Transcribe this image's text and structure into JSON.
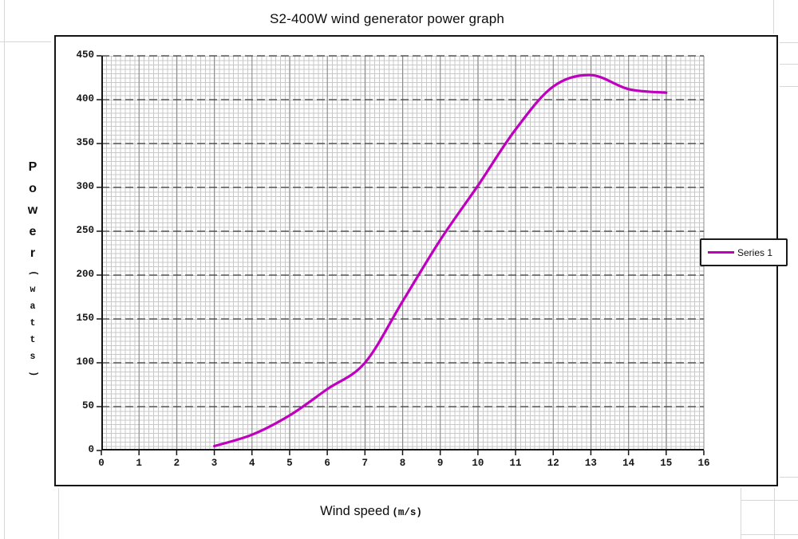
{
  "chart": {
    "xlabel_main": "Wind speed",
    "xlabel_unit": "(m/s)",
    "ylabel_main": "Power",
    "ylabel_sub": "(watts)"
  },
  "chart_data": {
    "type": "line",
    "title": "S2-400W wind generator power graph",
    "xlabel": "Wind speed (m/s)",
    "ylabel": "Power (watts)",
    "xlim": [
      0,
      16
    ],
    "ylim": [
      0,
      450
    ],
    "x_ticks": [
      0,
      1,
      2,
      3,
      4,
      5,
      6,
      7,
      8,
      9,
      10,
      11,
      12,
      13,
      14,
      15,
      16
    ],
    "y_ticks": [
      0,
      50,
      100,
      150,
      200,
      250,
      300,
      350,
      400,
      450
    ],
    "grid": "fine graph-paper minor grid; solid gray vertical majors each 1 m/s; dark dashed horizontal majors each 50 W",
    "legend_position": "right-middle",
    "series": [
      {
        "name": "Series 1",
        "color": "#bf00bf",
        "points": [
          [
            3,
            5
          ],
          [
            4,
            18
          ],
          [
            5,
            40
          ],
          [
            6,
            70
          ],
          [
            7,
            100
          ],
          [
            8,
            170
          ],
          [
            9,
            240
          ],
          [
            10,
            302
          ],
          [
            11,
            366
          ],
          [
            12,
            415
          ],
          [
            13,
            428
          ],
          [
            14,
            412
          ],
          [
            15,
            408
          ]
        ]
      }
    ],
    "colors": {
      "minor_grid": "#c8c8c8",
      "major_vertical": "#8a8a8a",
      "major_horizontal": "#3d3d3d",
      "axis": "#141414"
    }
  }
}
